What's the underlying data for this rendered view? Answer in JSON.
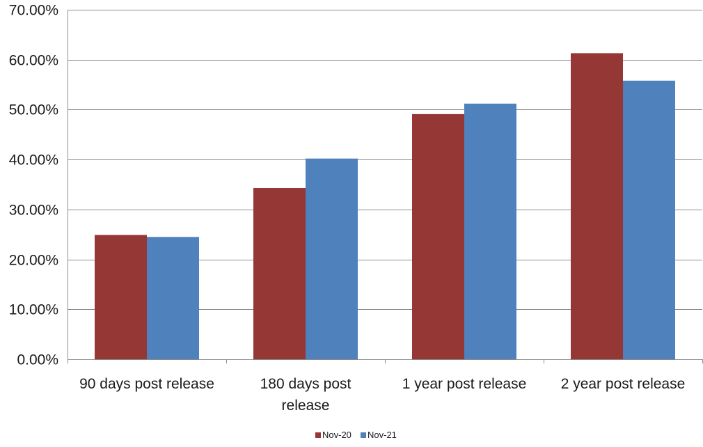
{
  "chart_data": {
    "type": "bar",
    "title": "",
    "xlabel": "",
    "ylabel": "",
    "categories": [
      [
        "90 days post release"
      ],
      [
        "180 days post",
        "release"
      ],
      [
        "1 year post release"
      ],
      [
        "2 year post release"
      ]
    ],
    "series": [
      {
        "name": "Nov-20",
        "color": "#953735",
        "values": [
          24.9,
          34.3,
          49.1,
          61.3
        ]
      },
      {
        "name": "Nov-21",
        "color": "#4f81bd",
        "values": [
          24.5,
          40.2,
          51.2,
          55.8
        ]
      }
    ],
    "ylim": [
      0,
      70
    ],
    "y_ticks": [
      "0.00%",
      "10.00%",
      "20.00%",
      "30.00%",
      "40.00%",
      "50.00%",
      "60.00%",
      "70.00%"
    ],
    "grid": true,
    "legend_position": "bottom"
  }
}
